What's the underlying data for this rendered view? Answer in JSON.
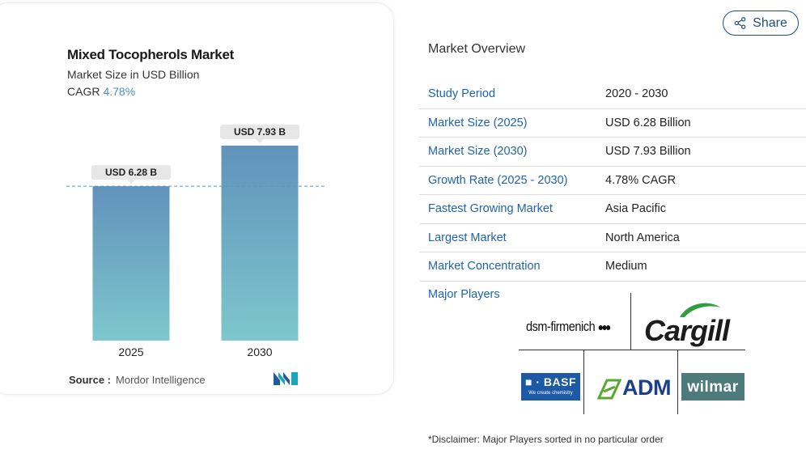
{
  "chart_panel": {
    "title": "Mixed Tocopherols Market",
    "subtitle": "Market Size in USD Billion",
    "cagr_label": "CAGR",
    "cagr_value": "4.78%",
    "source_label": "Source :",
    "source_value": "Mordor Intelligence"
  },
  "chart_data": {
    "type": "bar",
    "categories": [
      "2025",
      "2030"
    ],
    "values": [
      6.28,
      7.93
    ],
    "data_labels": [
      "USD 6.28 B",
      "USD 7.93 B"
    ],
    "title": "Mixed Tocopherols Market",
    "ylabel": "",
    "xlabel": "",
    "ylim": [
      0,
      7.93
    ],
    "reference_line": 6.28,
    "bar_gradient": [
      "#6192bb",
      "#7ec7cd"
    ],
    "grid": false
  },
  "share": {
    "label": "Share",
    "icon": "share-icon"
  },
  "overview": {
    "title": "Market Overview",
    "rows": [
      {
        "key": "Study Period",
        "value": "2020 - 2030"
      },
      {
        "key": "Market Size (2025)",
        "value": "USD 6.28 Billion"
      },
      {
        "key": "Market Size (2030)",
        "value": "USD 7.93 Billion"
      },
      {
        "key": "Growth Rate (2025 - 2030)",
        "value": "4.78% CAGR"
      },
      {
        "key": "Fastest Growing Market",
        "value": "Asia Pacific"
      },
      {
        "key": "Largest Market",
        "value": "North America"
      },
      {
        "key": "Market Concentration",
        "value": "Medium"
      }
    ],
    "major_players_label": "Major Players",
    "players": {
      "dsm": "dsm-firmenich",
      "cargill": "Cargill",
      "basf": "■ · BASF",
      "basf_tag": "We create chemistry",
      "adm": "ADM",
      "wilmar": "wilmar"
    },
    "disclaimer": "*Disclaimer: Major Players sorted in no particular order"
  },
  "colors": {
    "link_blue": "#1f64a8",
    "share_border": "#1f4e79",
    "cagr_blue": "#4a8fbd"
  }
}
